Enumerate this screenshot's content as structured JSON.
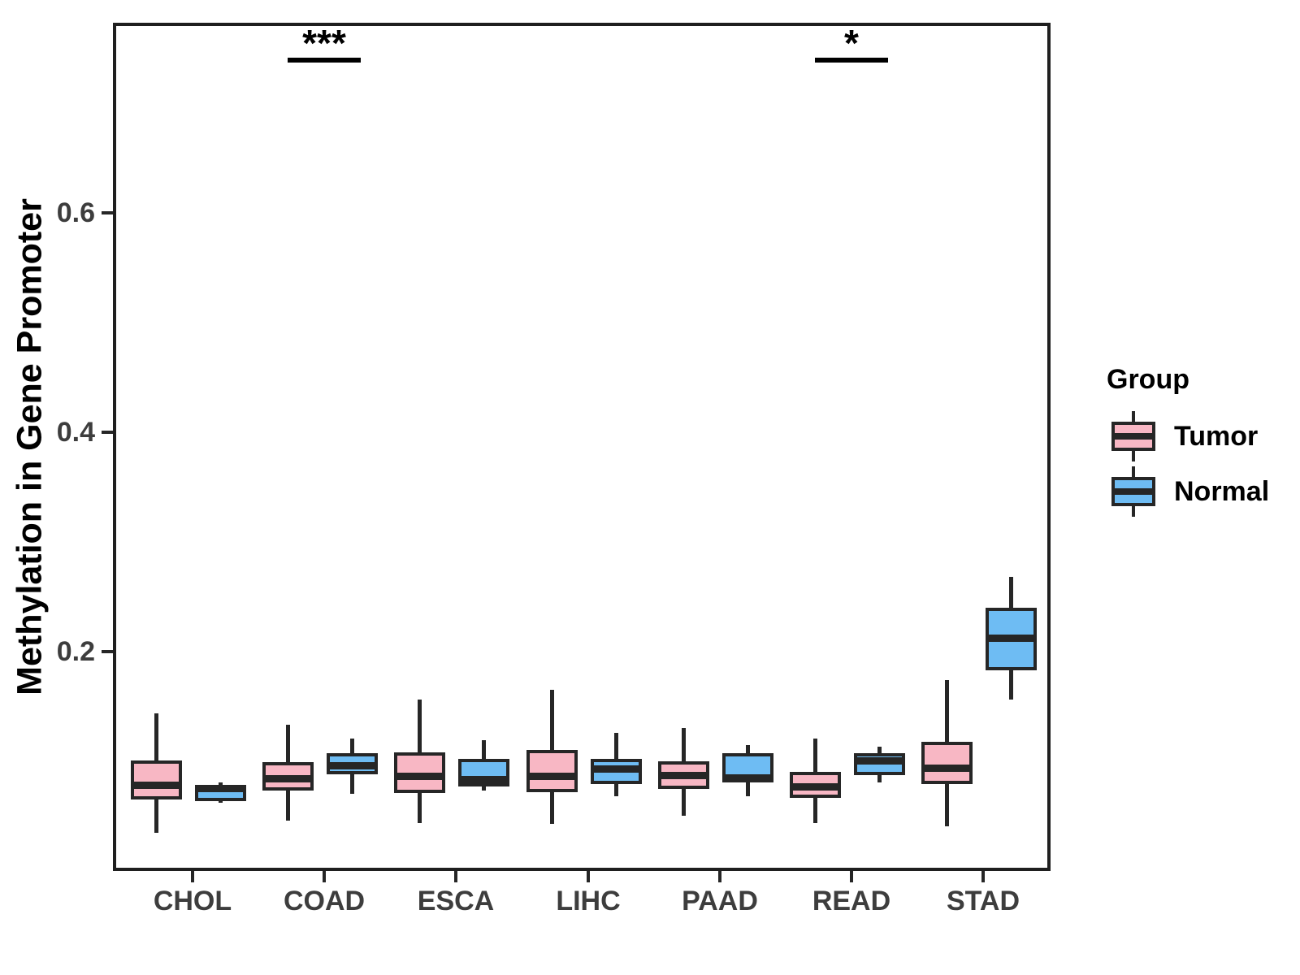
{
  "figure": {
    "background": "#ffffff",
    "stroke_color": "#262626",
    "axis_text_color": "#3d3d3d"
  },
  "chart_data": {
    "type": "grouped_boxplot",
    "title": "",
    "xlabel": "",
    "ylabel": "Methylation in Gene Promoter",
    "categories": [
      "CHOL",
      "COAD",
      "ESCA",
      "LIHC",
      "PAAD",
      "READ",
      "STAD"
    ],
    "ylim": [
      0,
      0.773
    ],
    "y_ticks": [
      {
        "value": 0.2,
        "label": "0.2"
      },
      {
        "value": 0.4,
        "label": "0.4"
      },
      {
        "value": 0.6,
        "label": "0.6"
      }
    ],
    "grid": false,
    "legend": {
      "title": "Group",
      "position": "right",
      "entries": [
        {
          "label": "Tumor",
          "color": "#F8B7C4"
        },
        {
          "label": "Normal",
          "color": "#6EBCF3"
        }
      ]
    },
    "series": [
      {
        "name": "Tumor",
        "fill": "#F8B7C4",
        "boxes": [
          {
            "category": "CHOL",
            "whisker_low": 0.035,
            "q1": 0.065,
            "median": 0.078,
            "q3": 0.101,
            "whisker_high": 0.144
          },
          {
            "category": "COAD",
            "whisker_low": 0.046,
            "q1": 0.073,
            "median": 0.084,
            "q3": 0.099,
            "whisker_high": 0.133
          },
          {
            "category": "ESCA",
            "whisker_low": 0.044,
            "q1": 0.071,
            "median": 0.086,
            "q3": 0.108,
            "whisker_high": 0.156
          },
          {
            "category": "LIHC",
            "whisker_low": 0.043,
            "q1": 0.072,
            "median": 0.086,
            "q3": 0.11,
            "whisker_high": 0.165
          },
          {
            "category": "PAAD",
            "whisker_low": 0.05,
            "q1": 0.075,
            "median": 0.087,
            "q3": 0.1,
            "whisker_high": 0.13
          },
          {
            "category": "READ",
            "whisker_low": 0.044,
            "q1": 0.067,
            "median": 0.077,
            "q3": 0.09,
            "whisker_high": 0.121
          },
          {
            "category": "STAD",
            "whisker_low": 0.041,
            "q1": 0.079,
            "median": 0.094,
            "q3": 0.118,
            "whisker_high": 0.174
          }
        ]
      },
      {
        "name": "Normal",
        "fill": "#6EBCF3",
        "boxes": [
          {
            "category": "CHOL",
            "whisker_low": 0.062,
            "q1": 0.064,
            "median": 0.075,
            "q3": 0.078,
            "whisker_high": 0.081
          },
          {
            "category": "COAD",
            "whisker_low": 0.07,
            "q1": 0.088,
            "median": 0.096,
            "q3": 0.107,
            "whisker_high": 0.121
          },
          {
            "category": "ESCA",
            "whisker_low": 0.073,
            "q1": 0.077,
            "median": 0.083,
            "q3": 0.102,
            "whisker_high": 0.119
          },
          {
            "category": "LIHC",
            "whisker_low": 0.068,
            "q1": 0.079,
            "median": 0.093,
            "q3": 0.102,
            "whisker_high": 0.126
          },
          {
            "category": "PAAD",
            "whisker_low": 0.068,
            "q1": 0.081,
            "median": 0.085,
            "q3": 0.107,
            "whisker_high": 0.115
          },
          {
            "category": "READ",
            "whisker_low": 0.081,
            "q1": 0.087,
            "median": 0.1,
            "q3": 0.107,
            "whisker_high": 0.113
          },
          {
            "category": "STAD",
            "whisker_low": 0.156,
            "q1": 0.183,
            "median": 0.212,
            "q3": 0.24,
            "whisker_high": 0.268
          }
        ]
      }
    ],
    "annotations": [
      {
        "category": "COAD",
        "label": "***"
      },
      {
        "category": "READ",
        "label": "*"
      }
    ]
  }
}
